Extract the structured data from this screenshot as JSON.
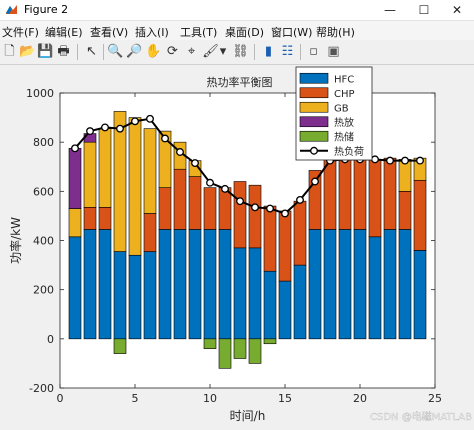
{
  "window": {
    "title": "Figure 2",
    "minimize": "—",
    "maximize": "☐",
    "close": "✕"
  },
  "menu": [
    {
      "label": "文件(F)"
    },
    {
      "label": "编辑(E)"
    },
    {
      "label": "查看(V)"
    },
    {
      "label": "插入(I)"
    },
    {
      "label": "工具(T)"
    },
    {
      "label": "桌面(D)"
    },
    {
      "label": "窗口(W)"
    },
    {
      "label": "帮助(H)"
    }
  ],
  "toolbar": [
    {
      "name": "new-figure-icon",
      "glyph": "🗋"
    },
    {
      "name": "open-file-icon",
      "glyph": "📂"
    },
    {
      "name": "save-icon",
      "glyph": "💾"
    },
    {
      "name": "print-icon",
      "glyph": "🖶"
    },
    {
      "name": "edit-plot-arrow-icon",
      "glyph": "↖"
    },
    {
      "name": "zoom-in-icon",
      "glyph": "🔍"
    },
    {
      "name": "zoom-out-icon",
      "glyph": "🔎"
    },
    {
      "name": "pan-hand-icon",
      "glyph": "✋"
    },
    {
      "name": "rotate-3d-icon",
      "glyph": "⟳"
    },
    {
      "name": "data-cursor-icon",
      "glyph": "⌖"
    },
    {
      "name": "brush-icon",
      "glyph": "🖌"
    },
    {
      "name": "brush-dropdown-icon",
      "glyph": "▾"
    },
    {
      "name": "link-plot-icon",
      "glyph": "⛓"
    },
    {
      "name": "insert-colorbar-icon",
      "glyph": "▮"
    },
    {
      "name": "insert-legend-icon",
      "glyph": "☷"
    },
    {
      "name": "hide-plot-tools-icon",
      "glyph": "▫"
    },
    {
      "name": "show-plot-tools-icon",
      "glyph": "▣"
    }
  ],
  "colors": {
    "HFC": "#0072BD",
    "CHP": "#D95319",
    "GB": "#EDB120",
    "热放": "#7E2F8E",
    "热储": "#77AC30",
    "热负荷": "#000000"
  },
  "watermark": "CSDN @电磁MATLAB",
  "chart_data": {
    "type": "bar",
    "stacked": true,
    "title": "热功率平衡图",
    "xlabel": "时间/h",
    "ylabel": "功率/kW",
    "xlim": [
      0,
      25
    ],
    "ylim": [
      -200,
      1000
    ],
    "xticks": [
      0,
      5,
      10,
      15,
      20,
      25
    ],
    "yticks": [
      -200,
      0,
      200,
      400,
      600,
      800,
      1000
    ],
    "grid": false,
    "legend_position": "top-right (inside)",
    "categories": [
      1,
      2,
      3,
      4,
      5,
      6,
      7,
      8,
      9,
      10,
      11,
      12,
      13,
      14,
      15,
      16,
      17,
      18,
      19,
      20,
      21,
      22,
      23,
      24
    ],
    "series": [
      {
        "name": "HFC",
        "type": "bar",
        "values": [
          415,
          445,
          445,
          355,
          340,
          355,
          445,
          445,
          445,
          445,
          445,
          370,
          370,
          275,
          235,
          300,
          445,
          445,
          445,
          445,
          415,
          445,
          445,
          360
        ]
      },
      {
        "name": "CHP",
        "type": "bar",
        "values": [
          0,
          90,
          90,
          0,
          0,
          155,
          170,
          245,
          215,
          170,
          170,
          270,
          255,
          265,
          285,
          260,
          240,
          290,
          290,
          290,
          315,
          290,
          155,
          285
        ]
      },
      {
        "name": "GB",
        "type": "bar",
        "values": [
          115,
          265,
          320,
          570,
          560,
          345,
          230,
          110,
          65,
          0,
          0,
          0,
          0,
          0,
          0,
          0,
          0,
          0,
          0,
          0,
          0,
          0,
          130,
          90
        ]
      },
      {
        "name": "热放",
        "type": "bar",
        "values": [
          245,
          35,
          0,
          0,
          0,
          0,
          0,
          0,
          0,
          0,
          0,
          0,
          0,
          0,
          0,
          0,
          0,
          0,
          0,
          0,
          0,
          0,
          0,
          0
        ]
      },
      {
        "name": "热储",
        "type": "bar",
        "values": [
          0,
          0,
          0,
          -60,
          0,
          0,
          0,
          0,
          0,
          -40,
          -120,
          -80,
          -100,
          -20,
          0,
          0,
          0,
          0,
          0,
          0,
          0,
          0,
          0,
          0
        ]
      },
      {
        "name": "热负荷",
        "type": "line",
        "marker": "circle",
        "values": [
          775,
          845,
          860,
          855,
          885,
          895,
          815,
          760,
          715,
          635,
          610,
          560,
          535,
          530,
          510,
          565,
          640,
          725,
          730,
          730,
          730,
          725,
          725,
          725
        ]
      }
    ]
  }
}
